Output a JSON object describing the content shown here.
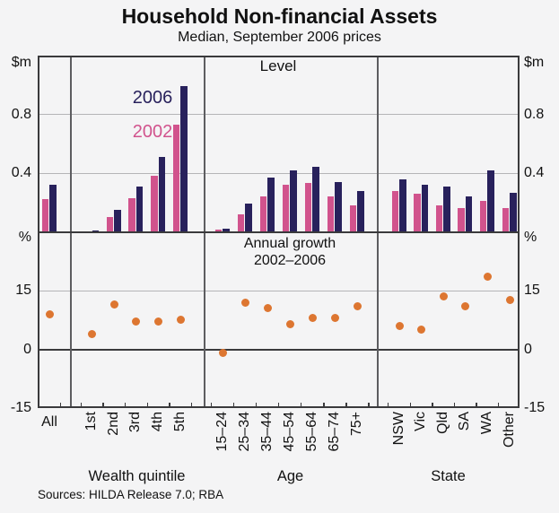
{
  "header": {
    "title": "Household Non-financial Assets",
    "subtitle": "Median, September 2006 prices"
  },
  "footer": {
    "sources": "Sources: HILDA Release 7.0; RBA"
  },
  "colors": {
    "series_2002": "#d1538d",
    "series_2006": "#28215c",
    "growth_dot": "#dd7631",
    "gridline": "#b4b4b7",
    "frame": "#3a3a3c",
    "background": "#f4f4f5"
  },
  "chart_data": {
    "type": "bar",
    "title": "Household Non-financial Assets",
    "subtitle": "Median, September 2006 prices",
    "series_names": [
      "2002",
      "2006"
    ],
    "panels": [
      {
        "id": "level",
        "type": "bar",
        "label": "Level",
        "unit": "$m",
        "ylim": [
          0,
          1.2
        ],
        "grid_on": true,
        "ticks": [
          {
            "label": "0.8",
            "value": 0.8
          },
          {
            "label": "0.4",
            "value": 0.4
          }
        ]
      },
      {
        "id": "annual-growth",
        "type": "scatter",
        "label_line1": "Annual growth",
        "label_line2": "2002–2006",
        "unit": "%",
        "ylim": [
          -15,
          30
        ],
        "grid_on": true,
        "ticks": [
          {
            "label": "15",
            "value": 15
          },
          {
            "label": "0",
            "value": 0
          },
          {
            "label": "-15",
            "value": -15
          }
        ]
      }
    ],
    "sections": [
      {
        "name": "all",
        "label": "",
        "categories": [
          {
            "label": "All",
            "level_2002": 0.22,
            "level_2006": 0.32,
            "growth": 9
          }
        ]
      },
      {
        "name": "wealth-quintile",
        "label": "Wealth quintile",
        "categories": [
          {
            "label": "1st",
            "level_2002": 0.005,
            "level_2006": 0.008,
            "growth": 4
          },
          {
            "label": "2nd",
            "level_2002": 0.1,
            "level_2006": 0.15,
            "growth": 11.5
          },
          {
            "label": "3rd",
            "level_2002": 0.23,
            "level_2006": 0.31,
            "growth": 7
          },
          {
            "label": "4th",
            "level_2002": 0.38,
            "level_2006": 0.51,
            "growth": 7
          },
          {
            "label": "5th",
            "level_2002": 0.73,
            "level_2006": 0.99,
            "growth": 7.5
          }
        ]
      },
      {
        "name": "age",
        "label": "Age",
        "categories": [
          {
            "label": "15–24",
            "level_2002": 0.015,
            "level_2006": 0.02,
            "growth": -1
          },
          {
            "label": "25–34",
            "level_2002": 0.12,
            "level_2006": 0.19,
            "growth": 12
          },
          {
            "label": "35–44",
            "level_2002": 0.24,
            "level_2006": 0.37,
            "growth": 10.5
          },
          {
            "label": "45–54",
            "level_2002": 0.32,
            "level_2006": 0.42,
            "growth": 6.5
          },
          {
            "label": "55–64",
            "level_2002": 0.33,
            "level_2006": 0.44,
            "growth": 8
          },
          {
            "label": "65–74",
            "level_2002": 0.24,
            "level_2006": 0.34,
            "growth": 8
          },
          {
            "label": "75+",
            "level_2002": 0.18,
            "level_2006": 0.28,
            "growth": 11
          }
        ]
      },
      {
        "name": "state",
        "label": "State",
        "categories": [
          {
            "label": "NSW",
            "level_2002": 0.28,
            "level_2006": 0.36,
            "growth": 6
          },
          {
            "label": "Vic",
            "level_2002": 0.26,
            "level_2006": 0.32,
            "growth": 5
          },
          {
            "label": "Qld",
            "level_2002": 0.18,
            "level_2006": 0.31,
            "growth": 13.5
          },
          {
            "label": "SA",
            "level_2002": 0.16,
            "level_2006": 0.24,
            "growth": 11
          },
          {
            "label": "WA",
            "level_2002": 0.21,
            "level_2006": 0.42,
            "growth": 18.5
          },
          {
            "label": "Other",
            "level_2002": 0.16,
            "level_2006": 0.265,
            "growth": 12.5
          }
        ]
      }
    ]
  }
}
